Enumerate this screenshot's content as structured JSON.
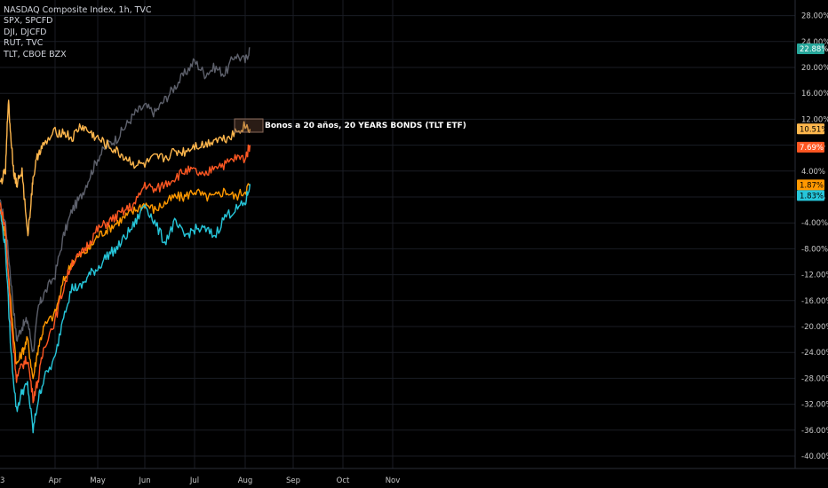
{
  "legend": [
    "NASDAQ Composite Index, 1h, TVC",
    "SPX, SPCFD",
    "DJI, DJCFD",
    "RUT, TVC",
    "TLT, CBOE BZX"
  ],
  "chart_data": {
    "type": "line",
    "title": "",
    "xlabel": "",
    "ylabel": "",
    "ylim": [
      -42,
      30
    ],
    "grid": true,
    "legend_placement": "top-left",
    "y_ticks": [
      "28.00%",
      "24.00%",
      "20.00%",
      "16.00%",
      "12.00%",
      "8.00%",
      "4.00%",
      "0.00%",
      "-4.00%",
      "-8.00%",
      "-12.00%",
      "-16.00%",
      "-20.00%",
      "-24.00%",
      "-28.00%",
      "-32.00%",
      "-36.00%",
      "-40.00%"
    ],
    "y_tick_values": [
      28,
      24,
      20,
      16,
      12,
      8,
      4,
      0,
      -4,
      -8,
      -12,
      -16,
      -20,
      -24,
      -28,
      -32,
      -36,
      -40
    ],
    "x_ticks": [
      "3",
      "Apr",
      "May",
      "Jun",
      "Jul",
      "Aug",
      "Sep",
      "Oct",
      "Nov"
    ],
    "x_tick_values": [
      0,
      1,
      2,
      3,
      4,
      5,
      6,
      7,
      8
    ],
    "x_unit": "months from March",
    "series": [
      {
        "name": "NASDAQ Composite Index",
        "color": "#5d606b",
        "last_label": "22.88%",
        "x": [
          0,
          0.1,
          0.2,
          0.3,
          0.4,
          0.5,
          0.6,
          0.7,
          0.8,
          1.0,
          1.2,
          1.4,
          1.6,
          1.8,
          2.0,
          2.2,
          2.4,
          2.6,
          2.8,
          3.0,
          3.2,
          3.4,
          3.6,
          3.8,
          4.0,
          4.2,
          4.4,
          4.6,
          4.8,
          5.0,
          5.1
        ],
        "y": [
          -1,
          -4,
          -13,
          -22,
          -20,
          -19,
          -24,
          -17,
          -15,
          -12,
          -6,
          -2,
          0,
          3,
          6,
          8,
          9,
          11,
          13,
          14,
          13,
          15,
          17,
          19,
          21,
          19,
          20,
          19,
          22,
          21,
          23
        ]
      },
      {
        "name": "SPX",
        "color": "#ff9800",
        "last_label": "1.87%",
        "x": [
          0,
          0.1,
          0.2,
          0.3,
          0.4,
          0.5,
          0.6,
          0.7,
          0.8,
          1.0,
          1.2,
          1.4,
          1.6,
          1.8,
          2.0,
          2.2,
          2.4,
          2.6,
          2.8,
          3.0,
          3.2,
          3.4,
          3.6,
          3.8,
          4.0,
          4.2,
          4.4,
          4.6,
          4.8,
          5.0,
          5.1
        ],
        "y": [
          -2,
          -6,
          -17,
          -26,
          -24,
          -22,
          -28,
          -23,
          -20,
          -18,
          -13,
          -10,
          -9,
          -8,
          -6,
          -5,
          -4,
          -3,
          -2,
          -1,
          -2,
          -1,
          0,
          0,
          1,
          0,
          0,
          1,
          0,
          1,
          2
        ]
      },
      {
        "name": "DJI",
        "color": "#26c6da",
        "last_label": "1.83%",
        "x": [
          0,
          0.1,
          0.2,
          0.3,
          0.4,
          0.5,
          0.6,
          0.7,
          0.8,
          1.0,
          1.2,
          1.4,
          1.6,
          1.8,
          2.0,
          2.2,
          2.4,
          2.6,
          2.8,
          3.0,
          3.2,
          3.4,
          3.6,
          3.8,
          4.0,
          4.2,
          4.4,
          4.6,
          4.8,
          5.0,
          5.1
        ],
        "y": [
          -2,
          -8,
          -24,
          -33,
          -30,
          -29,
          -36,
          -31,
          -28,
          -25,
          -18,
          -14,
          -14,
          -12,
          -11,
          -9,
          -8,
          -6,
          -4,
          -1,
          -4,
          -7,
          -4,
          -6,
          -5,
          -5,
          -6,
          -3,
          -2,
          -1,
          2
        ]
      },
      {
        "name": "RUT",
        "color": "#ff5722",
        "last_label": "7.69%",
        "x": [
          0,
          0.1,
          0.2,
          0.3,
          0.4,
          0.5,
          0.6,
          0.7,
          0.8,
          1.0,
          1.2,
          1.4,
          1.6,
          1.8,
          2.0,
          2.2,
          2.4,
          2.6,
          2.8,
          3.0,
          3.2,
          3.4,
          3.6,
          3.8,
          4.0,
          4.2,
          4.4,
          4.6,
          4.8,
          5.0,
          5.1
        ],
        "y": [
          -1,
          -5,
          -19,
          -28,
          -26,
          -25,
          -31,
          -28,
          -23,
          -19,
          -14,
          -10,
          -9,
          -7,
          -5,
          -4,
          -3,
          -2,
          -1,
          2,
          1,
          2,
          3,
          4,
          4,
          3,
          5,
          5,
          6,
          6,
          8
        ]
      },
      {
        "name": "TLT",
        "color": "#ffb74d",
        "last_label": "10.51%",
        "x": [
          0,
          0.1,
          0.15,
          0.2,
          0.25,
          0.3,
          0.4,
          0.5,
          0.55,
          0.6,
          0.7,
          0.8,
          1.0,
          1.2,
          1.4,
          1.6,
          1.8,
          2.0,
          2.2,
          2.4,
          2.6,
          2.8,
          3.0,
          3.2,
          3.4,
          3.6,
          3.8,
          4.0,
          4.2,
          4.4,
          4.6,
          4.8,
          5.0,
          5.1
        ],
        "y": [
          2,
          4,
          15,
          9,
          4,
          2,
          4,
          -6,
          -2,
          3,
          7,
          8,
          10,
          10,
          9,
          11,
          10,
          9,
          8,
          7,
          6,
          5,
          5,
          6,
          6,
          7,
          7,
          8,
          8,
          9,
          9,
          10,
          11,
          10.5
        ]
      }
    ],
    "annotation": "Bonos a 20 años, 20 YEARS BONDS (TLT ETF)"
  }
}
